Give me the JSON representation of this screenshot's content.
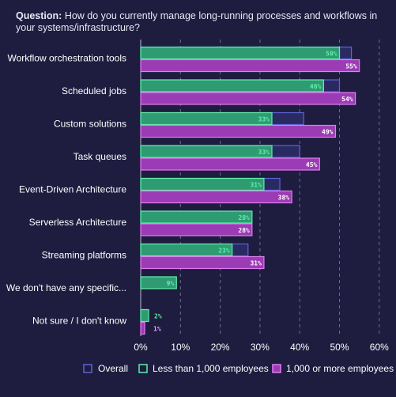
{
  "question": {
    "label": "Question:",
    "text": "How do you currently manage long-running processes and workflows in your systems/infrastructure?"
  },
  "colors": {
    "background": "#1e1c3f",
    "overall_fill": "#2a2a63",
    "overall_stroke": "#5d63d9",
    "small_fill": "#2f9b73",
    "small_stroke": "#5ff0a8",
    "large_fill": "#9c3cb4",
    "large_stroke": "#e07cf2",
    "small_text": "#5ff0a8",
    "large_text": "#f39cff",
    "grid": "#6e6c8a"
  },
  "chart_data": {
    "type": "bar",
    "orientation": "horizontal",
    "categories": [
      "Workflow orchestration tools",
      "Scheduled jobs",
      "Custom solutions",
      "Task queues",
      "Event-Driven Architecture",
      "Serverless Architecture",
      "Streaming platforms",
      "We don't have any specific...",
      "Not sure / I don't know"
    ],
    "series": [
      {
        "name": "Overall",
        "values": [
          53,
          50,
          41,
          40,
          35,
          28,
          27,
          5,
          1.5
        ]
      },
      {
        "name": "Less than 1,000 employees",
        "values": [
          50,
          46,
          33,
          33,
          31,
          28,
          23,
          9,
          2
        ]
      },
      {
        "name": "1,000 or more employees",
        "values": [
          55,
          54,
          49,
          45,
          38,
          28,
          31,
          0,
          1
        ]
      }
    ],
    "data_labels": {
      "Less than 1,000 employees": [
        "50%",
        "46%",
        "33%",
        "33%",
        "31%",
        "28%",
        "23%",
        "9%",
        "2%"
      ],
      "1,000 or more employees": [
        "55%",
        "54%",
        "49%",
        "45%",
        "38%",
        "28%",
        "31%",
        "",
        "1%"
      ]
    },
    "xlim": [
      0,
      60
    ],
    "x_ticks": [
      "0%",
      "10%",
      "20%",
      "30%",
      "40%",
      "50%",
      "60%"
    ],
    "grid": true,
    "legend": [
      "Overall",
      "Less than 1,000 employees",
      "1,000 or more employees"
    ],
    "legend_position": "bottom"
  }
}
